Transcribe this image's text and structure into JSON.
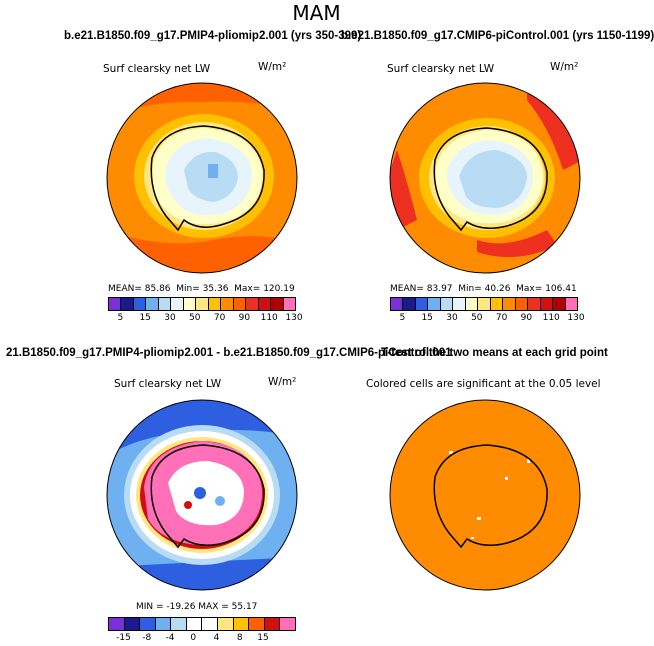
{
  "page_title": "MAM",
  "chart_data": [
    {
      "type": "heatmap",
      "projection": "south polar stereographic",
      "title": "b.e21.B1850.f09_g17.PMIP4-pliomip2.001 (yrs 350-399)",
      "variable": "Surf clearsky net LW",
      "units": "W/m²",
      "stats": {
        "mean_label": "MEAN=",
        "mean": "85.86",
        "min_label": "Min=",
        "min": "35.36",
        "max_label": "Max=",
        "max": "120.19"
      },
      "colorbar": {
        "ticks": [
          "5",
          "15",
          "30",
          "50",
          "70",
          "90",
          "110",
          "130"
        ],
        "colors": [
          "#7b2fd8",
          "#1a1a8c",
          "#2d5fe0",
          "#6fb0f0",
          "#b9dcf5",
          "#e8f4fb",
          "#ffffc8",
          "#ffe680",
          "#ffc000",
          "#ff8c00",
          "#ff6000",
          "#ee3020",
          "#d01010",
          "#b00000",
          "#ff70b8"
        ]
      }
    },
    {
      "type": "heatmap",
      "projection": "south polar stereographic",
      "title": "b.e21.B1850.f09_g17.CMIP6-piControl.001 (yrs 1150-1199)",
      "variable": "Surf clearsky net LW",
      "units": "W/m²",
      "stats": {
        "mean_label": "MEAN=",
        "mean": "83.97",
        "min_label": "Min=",
        "min": "40.26",
        "max_label": "Max=",
        "max": "106.41"
      },
      "colorbar": {
        "ticks": [
          "5",
          "15",
          "30",
          "50",
          "70",
          "90",
          "110",
          "130"
        ],
        "colors": [
          "#7b2fd8",
          "#1a1a8c",
          "#2d5fe0",
          "#6fb0f0",
          "#b9dcf5",
          "#e8f4fb",
          "#ffffc8",
          "#ffe680",
          "#ffc000",
          "#ff8c00",
          "#ff6000",
          "#ee3020",
          "#d01010",
          "#b00000",
          "#ff70b8"
        ]
      }
    },
    {
      "type": "heatmap",
      "projection": "south polar stereographic",
      "title": "21.B1850.f09_g17.PMIP4-pliomip2.001 - b.e21.B1850.f09_g17.CMIP6-piControl.001",
      "variable": "Surf clearsky net LW",
      "units": "W/m²",
      "stats": {
        "text": "MIN = -19.26  MAX = 55.17",
        "min": "-19.26",
        "max": "55.17"
      },
      "colorbar": {
        "ticks": [
          "-15",
          "-8",
          "-4",
          "0",
          "4",
          "8",
          "15"
        ],
        "colors": [
          "#7b2fd8",
          "#1a1a8c",
          "#2d5fe0",
          "#6fb0f0",
          "#b9dcf5",
          "#ffffff",
          "#ffffff",
          "#ffe680",
          "#ffc000",
          "#ff6000",
          "#d01010",
          "#ff70b8"
        ]
      }
    },
    {
      "type": "heatmap",
      "projection": "south polar stereographic",
      "title": "T-test of the two means at each grid point",
      "subtitle": "Colored cells are significant at the 0.05 level"
    }
  ]
}
